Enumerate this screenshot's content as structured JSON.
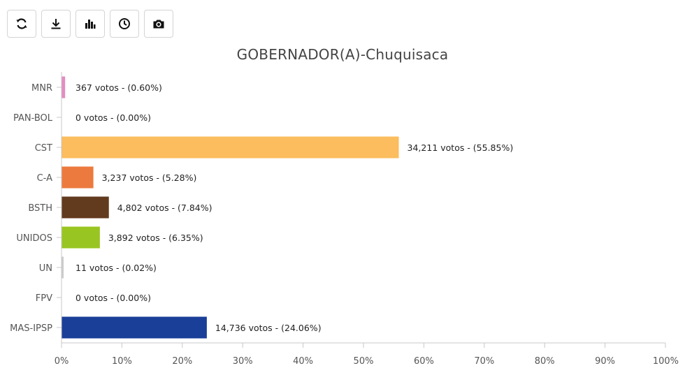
{
  "toolbar": {
    "buttons": [
      {
        "name": "refresh-button",
        "icon": "refresh-icon"
      },
      {
        "name": "download-button",
        "icon": "download-icon"
      },
      {
        "name": "bar-chart-button",
        "icon": "bar-chart-icon"
      },
      {
        "name": "history-button",
        "icon": "clock-icon"
      },
      {
        "name": "screenshot-button",
        "icon": "camera-icon"
      }
    ]
  },
  "chart_data": {
    "type": "bar",
    "orientation": "horizontal",
    "title": "GOBERNADOR(A)-Chuquisaca",
    "categories": [
      "MNR",
      "PAN-BOL",
      "CST",
      "C-A",
      "BSTH",
      "UNIDOS",
      "UN",
      "FPV",
      "MAS-IPSP"
    ],
    "values": [
      0.6,
      0.0,
      55.85,
      5.28,
      7.84,
      6.35,
      0.02,
      0.0,
      24.06
    ],
    "votes": [
      367,
      0,
      34211,
      3237,
      4802,
      3892,
      11,
      0,
      14736
    ],
    "labels": [
      "367 votos - (0.60%)",
      "0 votos - (0.00%)",
      "34,211 votos - (55.85%)",
      "3,237 votos - (5.28%)",
      "4,802 votos - (7.84%)",
      "3,892 votos - (6.35%)",
      "11 votos - (0.02%)",
      "0 votos - (0.00%)",
      "14,736 votos - (24.06%)"
    ],
    "colors": [
      "#e48cc2",
      "#cccccc",
      "#fbbd5e",
      "#ec7a3e",
      "#623a1e",
      "#99c522",
      "#cccccc",
      "#cccccc",
      "#1a3f98"
    ],
    "xlim": [
      0,
      100
    ],
    "xticks": [
      "0%",
      "10%",
      "20%",
      "30%",
      "40%",
      "50%",
      "60%",
      "70%",
      "80%",
      "90%",
      "100%"
    ],
    "grid": false,
    "legend": "none"
  }
}
